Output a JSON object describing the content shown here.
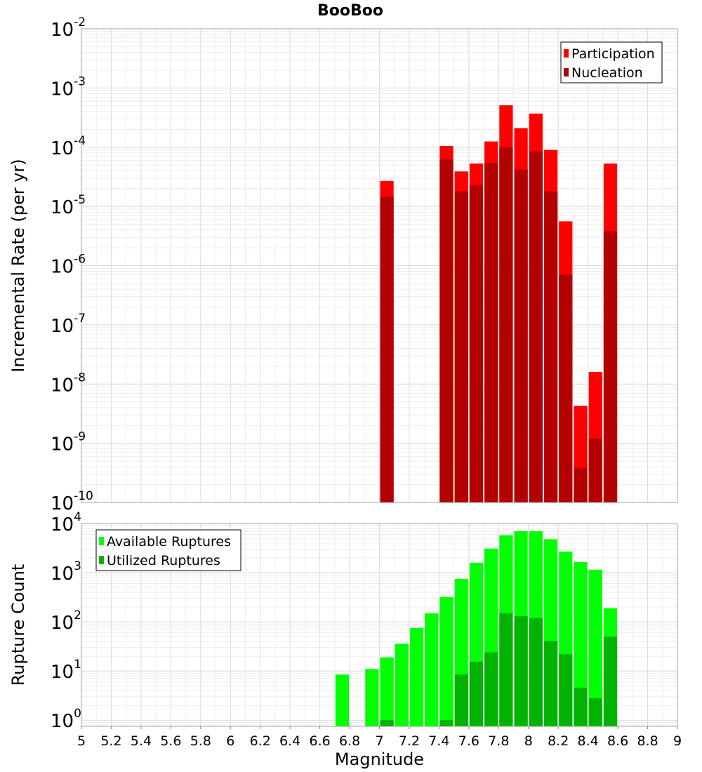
{
  "chart_data": [
    {
      "type": "bar",
      "title": "BooBoo",
      "ylabel": "Incremental Rate (per yr)",
      "xlabel": "",
      "xlim": [
        5,
        9
      ],
      "ylim": [
        1e-10,
        0.01
      ],
      "yscale": "log",
      "bar_width": 0.1,
      "grid": true,
      "legend": "top-right",
      "x": [
        7.05,
        7.45,
        7.55,
        7.65,
        7.75,
        7.85,
        7.95,
        8.05,
        8.15,
        8.25,
        8.35,
        8.45,
        8.55
      ],
      "series": [
        {
          "name": "Participation",
          "color": "#ff0000",
          "values": [
            2.7e-05,
            0.000105,
            3.9e-05,
            5.3e-05,
            0.000125,
            0.00051,
            0.00021,
            0.00037,
            9e-05,
            5.6e-06,
            4.3e-09,
            1.6e-08,
            5.3e-05
          ]
        },
        {
          "name": "Nucleation",
          "color": "#b30000",
          "values": [
            1.45e-05,
            6.2e-05,
            1.8e-05,
            2.3e-05,
            5.4e-05,
            0.0001,
            4.2e-05,
            8.5e-05,
            1.8e-05,
            7e-07,
            3.8e-10,
            1.2e-09,
            3.8e-06
          ]
        }
      ],
      "yticks": [
        {
          "base": "10",
          "exp": "-10"
        },
        {
          "base": "10",
          "exp": "-9"
        },
        {
          "base": "10",
          "exp": "-8"
        },
        {
          "base": "10",
          "exp": "-7"
        },
        {
          "base": "10",
          "exp": "-6"
        },
        {
          "base": "10",
          "exp": "-5"
        },
        {
          "base": "10",
          "exp": "-4"
        },
        {
          "base": "10",
          "exp": "-3"
        },
        {
          "base": "10",
          "exp": "-2"
        }
      ]
    },
    {
      "type": "bar",
      "title": "",
      "ylabel": "Rupture Count",
      "xlabel": "Magnitude",
      "xlim": [
        5,
        9
      ],
      "ylim": [
        0.75,
        10000
      ],
      "yscale": "log",
      "bar_width": 0.1,
      "grid": true,
      "legend": "top-left",
      "x": [
        6.75,
        6.95,
        7.05,
        7.15,
        7.25,
        7.35,
        7.45,
        7.55,
        7.65,
        7.75,
        7.85,
        7.95,
        8.05,
        8.15,
        8.25,
        8.35,
        8.45,
        8.55
      ],
      "series": [
        {
          "name": "Available Ruptures",
          "color": "#00ff00",
          "values": [
            8.5,
            11,
            19,
            36,
            75,
            150,
            320,
            750,
            1600,
            3100,
            5800,
            7000,
            7000,
            4800,
            2700,
            1650,
            1150,
            190
          ]
        },
        {
          "name": "Utilized Ruptures",
          "color": "#00b300",
          "values": [
            0,
            0,
            1,
            0,
            0,
            0,
            1,
            8.5,
            15.5,
            24,
            150,
            130,
            120,
            41,
            22,
            4.6,
            2.8,
            50
          ]
        }
      ],
      "yticks": [
        {
          "base": "10",
          "exp": "0"
        },
        {
          "base": "10",
          "exp": "1"
        },
        {
          "base": "10",
          "exp": "2"
        },
        {
          "base": "10",
          "exp": "3"
        },
        {
          "base": "10",
          "exp": "4"
        }
      ],
      "xticks": [
        "5",
        "5.2",
        "5.4",
        "5.6",
        "5.8",
        "6",
        "6.2",
        "6.4",
        "6.6",
        "6.8",
        "7",
        "7.2",
        "7.4",
        "7.6",
        "7.8",
        "8",
        "8.2",
        "8.4",
        "8.6",
        "8.8",
        "9"
      ]
    }
  ]
}
